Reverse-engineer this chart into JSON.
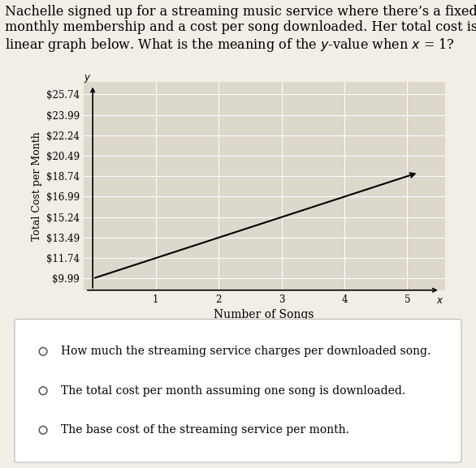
{
  "title_parts": [
    {
      "text": "Nachelle signed up for a streaming music service where there’s a fixed cost for\nmonthly membership and a cost per song downloaded. Her total cost is given by the\nlinear graph below. What is the meaning of the ",
      "style": "normal"
    },
    {
      "text": "y",
      "style": "italic"
    },
    {
      "text": "-value when ",
      "style": "normal"
    },
    {
      "text": "x",
      "style": "italic"
    },
    {
      "text": " = 1?",
      "style": "normal"
    }
  ],
  "ylabel": "Total Cost per Month",
  "xlabel": "Number of Songs",
  "yticks": [
    "$9.99",
    "$11.74",
    "$13.49",
    "$15.24",
    "$16.99",
    "$18.74",
    "$20.49",
    "$22.24",
    "$23.99",
    "$25.74"
  ],
  "yvalues": [
    9.99,
    11.74,
    13.49,
    15.24,
    16.99,
    18.74,
    20.49,
    22.24,
    23.99,
    25.74
  ],
  "xticks": [
    1,
    2,
    3,
    4,
    5
  ],
  "line_x": [
    0,
    5
  ],
  "line_y": [
    9.99,
    18.74
  ],
  "xlim": [
    -0.15,
    5.6
  ],
  "ylim": [
    9.0,
    26.8
  ],
  "options": [
    "How much the streaming service charges per downloaded song.",
    "The total cost per month assuming one song is downloaded.",
    "The base cost of the streaming service per month."
  ],
  "bg_color": "#f2ede5",
  "graph_bg": "#ddd8cc",
  "title_fontsize": 11.5,
  "axis_label_fontsize": 9,
  "tick_fontsize": 8.5,
  "option_fontsize": 10
}
